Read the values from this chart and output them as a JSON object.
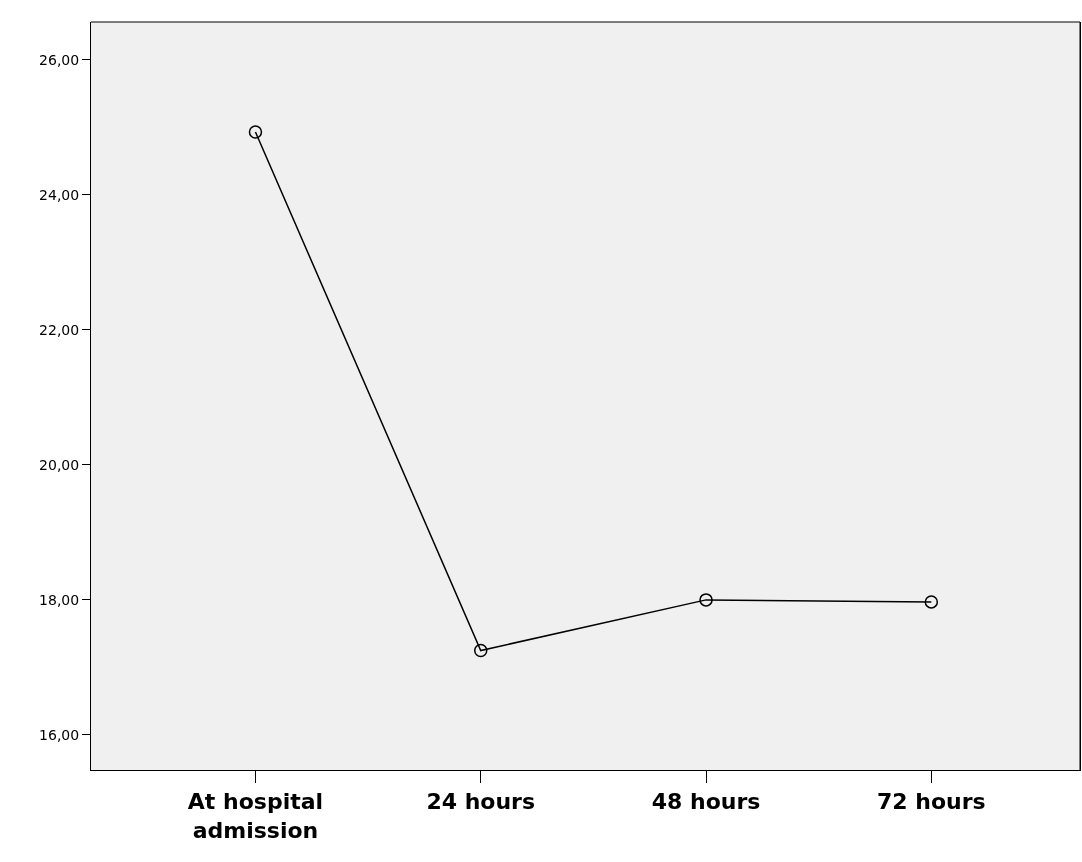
{
  "chart_data": {
    "type": "line",
    "categories": [
      "At hospital admission",
      "24 hours",
      "48 hours",
      "72 hours"
    ],
    "series": [
      {
        "color": "#000000",
        "values": [
          24.93,
          17.25,
          18.0,
          17.97
        ]
      }
    ],
    "ylim": [
      15.48,
      26.56
    ],
    "yticks": [
      {
        "value": 16,
        "label": "16,00"
      },
      {
        "value": 18,
        "label": "18,00"
      },
      {
        "value": 20,
        "label": "20,00"
      },
      {
        "value": 22,
        "label": "22,00"
      },
      {
        "value": 24,
        "label": "24,00"
      },
      {
        "value": 26,
        "label": "26,00"
      }
    ],
    "grid": false,
    "legend": false,
    "marker": "circle",
    "line_style": "solid"
  }
}
